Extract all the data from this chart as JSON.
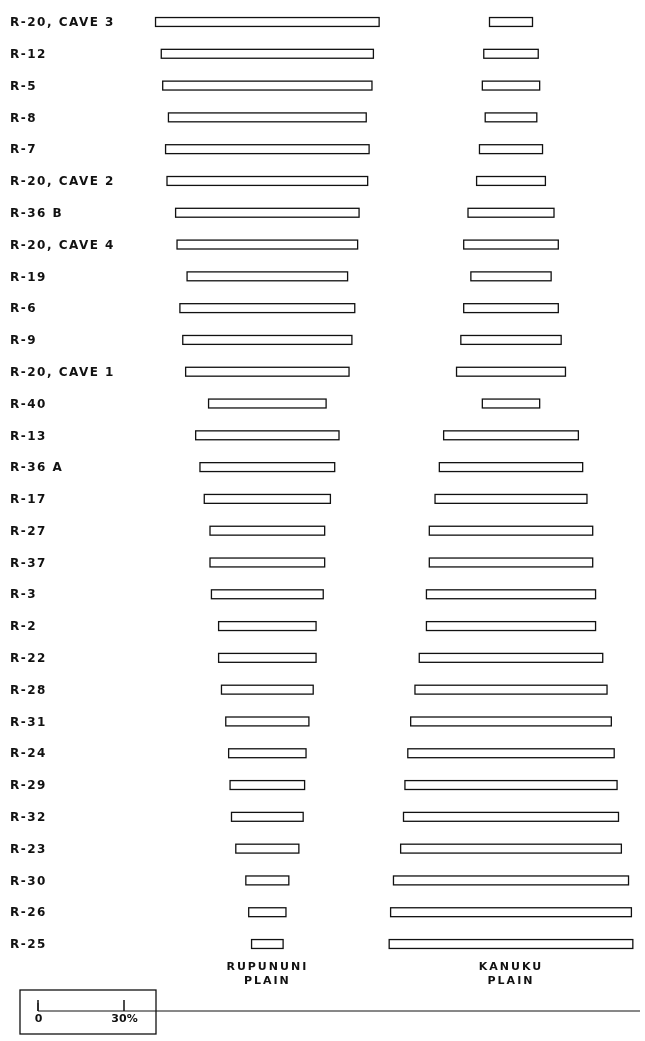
{
  "chart_data": {
    "type": "bar",
    "orientation": "horizontal",
    "categories": [
      "R-20, CAVE 3",
      "R-12",
      "R-5",
      "R-8",
      "R-7",
      "R-20, CAVE 2",
      "R-36 B",
      "R-20, CAVE 4",
      "R-19",
      "R-6",
      "R-9",
      "R-20, CAVE 1",
      "R-40",
      "R-13",
      "R-36 A",
      "R-17",
      "R-27",
      "R-37",
      "R-3",
      "R-2",
      "R-22",
      "R-28",
      "R-31",
      "R-24",
      "R-29",
      "R-32",
      "R-23",
      "R-30",
      "R-26",
      "R-25"
    ],
    "series": [
      {
        "name": "RUPUNUNI PLAIN",
        "color": "#ffffff",
        "values": [
          78,
          74,
          73,
          69,
          71,
          70,
          64,
          63,
          56,
          61,
          59,
          57,
          41,
          50,
          47,
          44,
          40,
          40,
          39,
          34,
          34,
          32,
          29,
          27,
          26,
          25,
          22,
          15,
          13,
          11
        ],
        "base": [
          41,
          43,
          43.5,
          45.5,
          44.5,
          45,
          48,
          48.5,
          52,
          49.5,
          50.5,
          51.5,
          59.5,
          55,
          56.5,
          58,
          60,
          60,
          60.5,
          63,
          63,
          64,
          65.5,
          66.5,
          67,
          67.5,
          69,
          72.5,
          73.5,
          74.5
        ]
      },
      {
        "name": "KANUKU PLAIN",
        "color": "#ffffff",
        "values": [
          15,
          19,
          20,
          18,
          22,
          24,
          30,
          33,
          28,
          33,
          35,
          38,
          20,
          47,
          50,
          53,
          57,
          57,
          59,
          59,
          64,
          67,
          70,
          72,
          74,
          75,
          77,
          82,
          84,
          85
        ],
        "base": [
          157.5,
          155.5,
          155,
          156,
          154,
          153,
          150,
          148.5,
          151,
          148.5,
          147.5,
          146,
          155,
          141.5,
          140,
          138.5,
          136.5,
          136.5,
          135.5,
          135.5,
          133,
          131.5,
          130,
          129,
          128,
          127.5,
          126.5,
          124,
          123,
          122.5
        ]
      }
    ],
    "xlim": [
      0,
      210
    ],
    "xticks": [
      0,
      {
        "value": 30,
        "label": "30%"
      }
    ]
  }
}
